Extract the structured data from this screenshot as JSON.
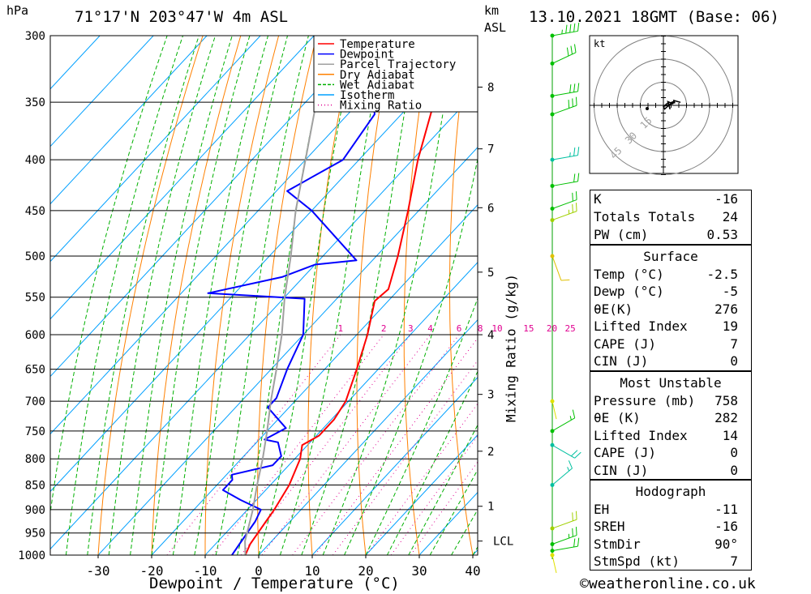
{
  "header": {
    "pressure_unit": "hPa",
    "location": "71°17'N 203°47'W 4m ASL",
    "height_unit_km": "km",
    "height_unit_asl": "ASL",
    "datetime": "13.10.2021 18GMT (Base: 06)"
  },
  "footer": {
    "copyright": "©weatheronline.co.uk"
  },
  "chart_data": {
    "type": "line",
    "title": "71°17'N 203°47'W 4m ASL",
    "xlabel": "Dewpoint / Temperature (°C)",
    "ylabel": "hPa",
    "y2label": "Mixing Ratio (g/kg)",
    "xlim": [
      -40,
      40
    ],
    "ylim": [
      1000,
      300
    ],
    "x_ticks": [
      -30,
      -20,
      -10,
      0,
      10,
      20,
      30,
      40
    ],
    "x_tick_labels": [
      "-30",
      "-20",
      "-10",
      "0",
      "10",
      "20",
      "30",
      "40"
    ],
    "pressure_levels": [
      300,
      350,
      400,
      450,
      500,
      550,
      600,
      650,
      700,
      750,
      800,
      850,
      900,
      950,
      1000
    ],
    "pressure_labels": [
      "300",
      "350",
      "400",
      "450",
      "500",
      "550",
      "600",
      "650",
      "700",
      "750",
      "800",
      "850",
      "900",
      "950",
      "1000"
    ],
    "height_ticks": [
      {
        "km": "8",
        "p": 338
      },
      {
        "km": "7",
        "p": 390
      },
      {
        "km": "6",
        "p": 447
      },
      {
        "km": "5",
        "p": 519
      },
      {
        "km": "4",
        "p": 600
      },
      {
        "km": "3",
        "p": 689
      },
      {
        "km": "2",
        "p": 786
      },
      {
        "km": "1",
        "p": 893
      },
      {
        "km": "LCL",
        "p": 968
      }
    ],
    "mixing_ratio_labels": [
      "1",
      "2",
      "3",
      "4",
      "6",
      "8",
      "10",
      "15",
      "20",
      "25"
    ],
    "mixing_ratio_values": [
      1,
      2,
      3,
      4,
      6,
      8,
      10,
      15,
      20,
      25
    ],
    "legend_position": "top-right",
    "legend": [
      {
        "name": "Temperature",
        "color": "#ff0000",
        "style": "solid"
      },
      {
        "name": "Dewpoint",
        "color": "#0000ff",
        "style": "solid"
      },
      {
        "name": "Parcel Trajectory",
        "color": "#a0a0a0",
        "style": "solid"
      },
      {
        "name": "Dry Adiabat",
        "color": "#ff8000",
        "style": "solid"
      },
      {
        "name": "Wet Adiabat",
        "color": "#00b000",
        "style": "dashed"
      },
      {
        "name": "Isotherm",
        "color": "#00a0ff",
        "style": "solid"
      },
      {
        "name": "Mixing Ratio",
        "color": "#e00090",
        "style": "dotted"
      }
    ],
    "series": [
      {
        "name": "Temperature",
        "color": "#ff0000",
        "points": [
          {
            "p": 1000,
            "t": -2.5
          },
          {
            "p": 975,
            "t": -3.5
          },
          {
            "p": 950,
            "t": -4
          },
          {
            "p": 925,
            "t": -4.5
          },
          {
            "p": 900,
            "t": -5
          },
          {
            "p": 850,
            "t": -6.5
          },
          {
            "p": 800,
            "t": -9
          },
          {
            "p": 775,
            "t": -11
          },
          {
            "p": 758,
            "t": -9.5
          },
          {
            "p": 730,
            "t": -9.5
          },
          {
            "p": 700,
            "t": -10.5
          },
          {
            "p": 650,
            "t": -14
          },
          {
            "p": 600,
            "t": -18
          },
          {
            "p": 555,
            "t": -22.5
          },
          {
            "p": 540,
            "t": -22
          },
          {
            "p": 500,
            "t": -26
          },
          {
            "p": 450,
            "t": -32
          },
          {
            "p": 400,
            "t": -39
          },
          {
            "p": 350,
            "t": -46
          },
          {
            "p": 300,
            "t": -53
          }
        ]
      },
      {
        "name": "Dewpoint",
        "color": "#0000ff",
        "points": [
          {
            "p": 1000,
            "t": -5
          },
          {
            "p": 975,
            "t": -5.5
          },
          {
            "p": 950,
            "t": -6
          },
          {
            "p": 925,
            "t": -6.5
          },
          {
            "p": 900,
            "t": -7.5
          },
          {
            "p": 880,
            "t": -13
          },
          {
            "p": 860,
            "t": -18
          },
          {
            "p": 850,
            "t": -18
          },
          {
            "p": 840,
            "t": -18
          },
          {
            "p": 830,
            "t": -19
          },
          {
            "p": 812,
            "t": -13
          },
          {
            "p": 795,
            "t": -13
          },
          {
            "p": 770,
            "t": -16
          },
          {
            "p": 765,
            "t": -19
          },
          {
            "p": 745,
            "t": -17
          },
          {
            "p": 710,
            "t": -24
          },
          {
            "p": 695,
            "t": -24
          },
          {
            "p": 650,
            "t": -27
          },
          {
            "p": 600,
            "t": -30
          },
          {
            "p": 552,
            "t": -36
          },
          {
            "p": 545,
            "t": -55
          },
          {
            "p": 525,
            "t": -44
          },
          {
            "p": 510,
            "t": -40
          },
          {
            "p": 505,
            "t": -33
          },
          {
            "p": 450,
            "t": -50
          },
          {
            "p": 430,
            "t": -58
          },
          {
            "p": 400,
            "t": -53
          },
          {
            "p": 360,
            "t": -55
          },
          {
            "p": 330,
            "t": -62
          },
          {
            "p": 310,
            "t": -62
          },
          {
            "p": 300,
            "t": -64
          }
        ]
      },
      {
        "name": "Parcel Trajectory",
        "color": "#a0a0a0",
        "points": [
          {
            "p": 1000,
            "t": -2.5
          },
          {
            "p": 968,
            "t": -5
          },
          {
            "p": 900,
            "t": -9
          },
          {
            "p": 850,
            "t": -12.5
          },
          {
            "p": 800,
            "t": -16
          },
          {
            "p": 750,
            "t": -20
          },
          {
            "p": 700,
            "t": -24.5
          },
          {
            "p": 650,
            "t": -29
          },
          {
            "p": 600,
            "t": -34
          },
          {
            "p": 550,
            "t": -40
          },
          {
            "p": 500,
            "t": -46
          },
          {
            "p": 450,
            "t": -53
          },
          {
            "p": 400,
            "t": -60
          },
          {
            "p": 350,
            "t": -68
          },
          {
            "p": 300,
            "t": -77
          }
        ]
      }
    ],
    "wind_profile": [
      {
        "p": 300,
        "dir": 260,
        "kt": 45,
        "color": "#00c000"
      },
      {
        "p": 320,
        "dir": 245,
        "kt": 30,
        "color": "#00c000"
      },
      {
        "p": 345,
        "dir": 260,
        "kt": 30,
        "color": "#00c000"
      },
      {
        "p": 360,
        "dir": 250,
        "kt": 30,
        "color": "#00c000"
      },
      {
        "p": 400,
        "dir": 260,
        "kt": 25,
        "color": "#00c0a0"
      },
      {
        "p": 425,
        "dir": 260,
        "kt": 20,
        "color": "#00c000"
      },
      {
        "p": 448,
        "dir": 250,
        "kt": 20,
        "color": "#00c000"
      },
      {
        "p": 460,
        "dir": 250,
        "kt": 25,
        "color": "#a0d000"
      },
      {
        "p": 500,
        "dir": 340,
        "kt": 10,
        "color": "#e0c000"
      },
      {
        "p": 700,
        "dir": 0,
        "kt": 3,
        "color": "#e0e000"
      },
      {
        "p": 750,
        "dir": 240,
        "kt": 15,
        "color": "#00c000"
      },
      {
        "p": 775,
        "dir": 300,
        "kt": 20,
        "color": "#00c0a0"
      },
      {
        "p": 850,
        "dir": 230,
        "kt": 15,
        "color": "#00c0a0"
      },
      {
        "p": 940,
        "dir": 250,
        "kt": 20,
        "color": "#a0d000"
      },
      {
        "p": 975,
        "dir": 250,
        "kt": 25,
        "color": "#00c000"
      },
      {
        "p": 990,
        "dir": 260,
        "kt": 20,
        "color": "#00c000"
      },
      {
        "p": 1000,
        "dir": 0,
        "kt": 3,
        "color": "#e0e000"
      }
    ],
    "hodograph": {
      "unit": "kt",
      "ring_labels": [
        "15",
        "30",
        "45"
      ],
      "ring_values": [
        15,
        30,
        45
      ]
    }
  },
  "panels": {
    "indices": [
      {
        "label": "K",
        "value": "-16"
      },
      {
        "label": "Totals Totals",
        "value": "24"
      },
      {
        "label": "PW (cm)",
        "value": "0.53"
      }
    ],
    "surface": {
      "title": "Surface",
      "rows": [
        {
          "label": "Temp (°C)",
          "value": "-2.5"
        },
        {
          "label": "Dewp (°C)",
          "value": "-5"
        },
        {
          "label": "θE(K)",
          "value": "276"
        },
        {
          "label": "Lifted Index",
          "value": "19"
        },
        {
          "label": "CAPE (J)",
          "value": "7"
        },
        {
          "label": "CIN (J)",
          "value": "0"
        }
      ]
    },
    "most_unstable": {
      "title": "Most Unstable",
      "rows": [
        {
          "label": "Pressure (mb)",
          "value": "758"
        },
        {
          "label": "θE (K)",
          "value": "282"
        },
        {
          "label": "Lifted Index",
          "value": "14"
        },
        {
          "label": "CAPE (J)",
          "value": "0"
        },
        {
          "label": "CIN (J)",
          "value": "0"
        }
      ]
    },
    "hodograph": {
      "title": "Hodograph",
      "rows": [
        {
          "label": "EH",
          "value": "-11"
        },
        {
          "label": "SREH",
          "value": "-16"
        },
        {
          "label": "StmDir",
          "value": "90°"
        },
        {
          "label": "StmSpd (kt)",
          "value": "7"
        }
      ]
    }
  },
  "colors": {
    "temperature": "#ff0000",
    "dewpoint": "#0000ff",
    "parcel": "#a0a0a0",
    "dry_adiabat": "#ff8000",
    "wet_adiabat": "#00b000",
    "isotherm": "#00a0ff",
    "mixing_ratio": "#e00090"
  }
}
